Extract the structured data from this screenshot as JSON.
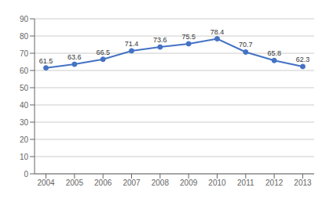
{
  "chart_data": {
    "type": "line",
    "x": [
      2004,
      2005,
      2006,
      2007,
      2008,
      2009,
      2010,
      2011,
      2012,
      2013
    ],
    "values": [
      61.5,
      63.6,
      66.5,
      71.4,
      73.6,
      75.5,
      78.4,
      70.7,
      65.8,
      62.3
    ],
    "color": "#4472C4",
    "marker": "o",
    "xlim": [
      2003.6,
      2013.4
    ],
    "xticks": [
      2004,
      2005,
      2006,
      2007,
      2008,
      2009,
      2010,
      2011,
      2012,
      2013
    ],
    "ylim": [
      0,
      90
    ],
    "yticks": [
      0,
      10,
      20,
      30,
      40,
      50,
      60,
      70,
      80,
      90
    ],
    "grid": true,
    "data_labels": true
  }
}
